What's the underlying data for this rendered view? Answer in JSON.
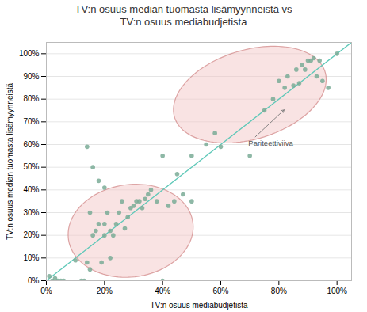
{
  "chart_data": {
    "type": "scatter",
    "title": "TV:n osuus median tuomasta lisämyynneistä vs\nTV:n osuus mediabudjetista",
    "xlabel": "TV:n osuus mediabudjetista",
    "ylabel": "TV:n osuus median tuomasta lisämyynneistä",
    "x": [
      0.01,
      0.02,
      0.03,
      0.04,
      0.05,
      0.06,
      0.1,
      0.12,
      0.13,
      0.14,
      0.15,
      0.15,
      0.16,
      0.17,
      0.18,
      0.19,
      0.2,
      0.2,
      0.21,
      0.22,
      0.22,
      0.23,
      0.24,
      0.25,
      0.26,
      0.27,
      0.28,
      0.29,
      0.3,
      0.31,
      0.32,
      0.33,
      0.34,
      0.35,
      0.36,
      0.38,
      0.4,
      0.42,
      0.44,
      0.47,
      0.5,
      0.4,
      0.45,
      0.5,
      0.55,
      0.58,
      0.6,
      0.7,
      0.75,
      0.78,
      0.8,
      0.82,
      0.83,
      0.85,
      0.86,
      0.87,
      0.88,
      0.89,
      0.9,
      0.91,
      0.92,
      0.93,
      0.94,
      0.95,
      0.97,
      1.0,
      0.14,
      0.16,
      0.18,
      0.2
    ],
    "values": [
      0.02,
      0.0,
      0.01,
      0.0,
      0.0,
      0.0,
      0.09,
      0.0,
      0.0,
      0.08,
      0.3,
      0.05,
      0.2,
      0.22,
      0.25,
      0.08,
      0.2,
      0.25,
      0.3,
      0.22,
      0.1,
      0.2,
      0.25,
      0.3,
      0.35,
      0.23,
      0.28,
      0.32,
      0.33,
      0.35,
      0.35,
      0.32,
      0.36,
      0.38,
      0.4,
      0.35,
      0.0,
      0.33,
      0.35,
      0.38,
      0.35,
      0.55,
      0.47,
      0.55,
      0.6,
      0.65,
      0.59,
      0.55,
      0.75,
      0.8,
      0.88,
      0.85,
      0.9,
      0.86,
      0.93,
      0.87,
      0.95,
      0.93,
      0.97,
      0.97,
      0.98,
      0.9,
      0.97,
      0.88,
      0.85,
      1.0,
      0.59,
      0.5,
      0.44,
      0.41
    ],
    "color": "#7aab96",
    "parity_line": {
      "x": [
        0,
        1.05
      ],
      "y": [
        0,
        1.05
      ],
      "color": "#5ec8b8"
    },
    "ellipses": [
      {
        "center": [
          0.29,
          0.22
        ],
        "width": 0.44,
        "height": 0.4,
        "angle": 30,
        "color": "#f2c0c0",
        "edge_color": "#c87070"
      },
      {
        "center": [
          0.7,
          0.82
        ],
        "width": 0.56,
        "height": 0.38,
        "angle": 28,
        "color": "#f2c0c0",
        "edge_color": "#c87070"
      }
    ],
    "annotations": [
      {
        "text": "Pariteettiviiva",
        "xy": [
          0.82,
          0.755
        ],
        "xytext": [
          0.695,
          0.605
        ]
      }
    ],
    "xlim": [
      0,
      1.05
    ],
    "ylim": [
      0,
      1.05
    ],
    "xticks": [
      {
        "value": 0.0,
        "label": "0%"
      },
      {
        "value": 0.2,
        "label": "20%"
      },
      {
        "value": 0.4,
        "label": "40%"
      },
      {
        "value": 0.6,
        "label": "60%"
      },
      {
        "value": 0.8,
        "label": "80%"
      },
      {
        "value": 1.0,
        "label": "100%"
      }
    ],
    "yticks": [
      {
        "value": 0.0,
        "label": "0%"
      },
      {
        "value": 0.1,
        "label": "10%"
      },
      {
        "value": 0.2,
        "label": "20%"
      },
      {
        "value": 0.3,
        "label": "30%"
      },
      {
        "value": 0.4,
        "label": "40%"
      },
      {
        "value": 0.5,
        "label": "50%"
      },
      {
        "value": 0.6,
        "label": "60%"
      },
      {
        "value": 0.7,
        "label": "70%"
      },
      {
        "value": 0.8,
        "label": "80%"
      },
      {
        "value": 0.9,
        "label": "90%"
      },
      {
        "value": 1.0,
        "label": "100%"
      }
    ],
    "grid": "y"
  }
}
